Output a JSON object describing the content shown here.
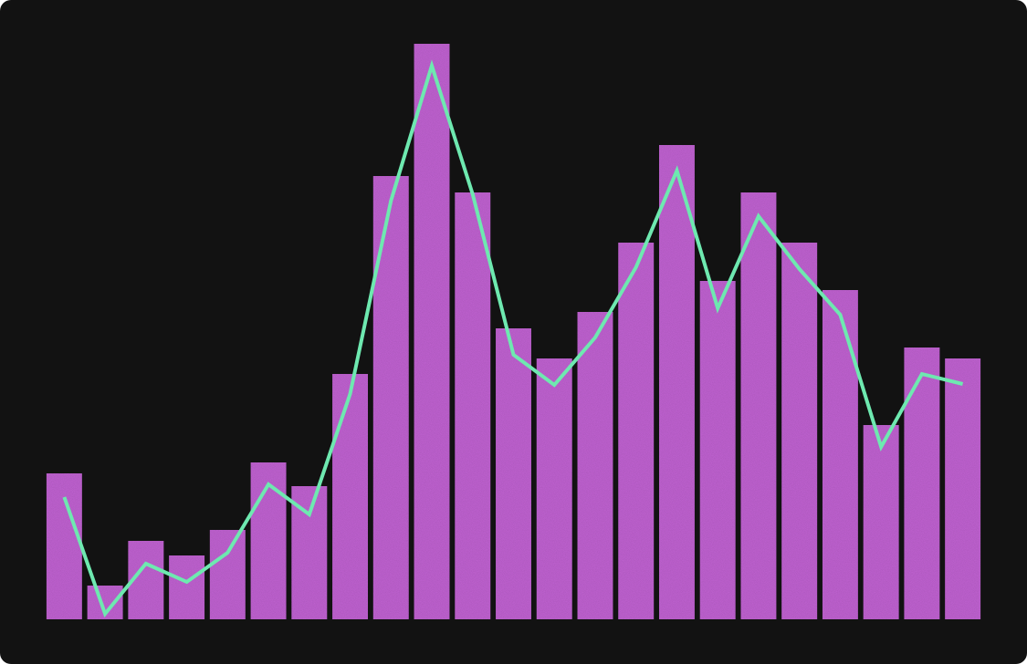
{
  "chart_data": {
    "type": "bar",
    "categories": [
      null,
      null,
      null,
      null,
      null,
      null,
      null,
      null,
      null,
      null,
      null,
      null,
      null,
      null,
      null,
      null,
      null,
      null,
      null,
      null,
      null,
      null,
      null
    ],
    "series": [
      {
        "type": "bar",
        "color": "#c766d9",
        "values": [
          160,
          37,
          86,
          70,
          98,
          172,
          146,
          269,
          486,
          631,
          468,
          319,
          286,
          337,
          413,
          520,
          371,
          468,
          413,
          361,
          213,
          298,
          286
        ]
      },
      {
        "type": "line",
        "color": "#6ee9b0",
        "values": [
          134,
          6,
          61,
          41,
          73,
          148,
          115,
          247,
          459,
          607,
          466,
          290,
          257,
          309,
          386,
          492,
          341,
          442,
          384,
          334,
          189,
          269,
          258
        ]
      }
    ],
    "ylim": [
      0,
      640
    ]
  }
}
